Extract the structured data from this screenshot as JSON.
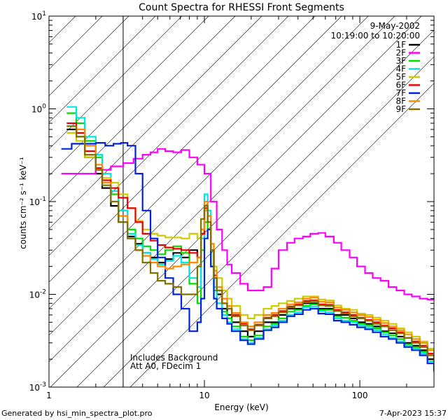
{
  "chart_data": {
    "type": "line",
    "title": "Count Spectra for RHESSI Front Segments",
    "xlabel": "Energy (keV)",
    "ylabel": "counts cm⁻² s⁻¹ keV⁻¹",
    "xscale": "log",
    "yscale": "log",
    "xlim": [
      1,
      300
    ],
    "ylim": [
      0.001,
      10
    ],
    "x_ticks": [
      {
        "value": 1,
        "label": "1"
      },
      {
        "value": 10,
        "label": "10"
      },
      {
        "value": 100,
        "label": "100"
      }
    ],
    "y_ticks": [
      {
        "value": 0.001,
        "base": "10",
        "exp": "-3"
      },
      {
        "value": 0.01,
        "base": "10",
        "exp": "-2"
      },
      {
        "value": 0.1,
        "base": "10",
        "exp": "-1"
      },
      {
        "value": 1,
        "base": "10",
        "exp": "0"
      },
      {
        "value": 10,
        "base": "10",
        "exp": "1"
      }
    ],
    "hatched_region": {
      "x_from": 1,
      "x_to": 3
    },
    "info_top_right": [
      "9-May-2002",
      "10:19:00 to 10:20:00"
    ],
    "annotation_lines": [
      "Includes Background",
      "Att A0, FDecim 1"
    ],
    "footer_left": "Generated by hsi_min_spectra_plot.pro",
    "footer_right": "7-Apr-2023 15:37",
    "series": [
      {
        "name": "1F",
        "color": "#000000",
        "x": [
          1.3,
          1.5,
          1.7,
          2.0,
          2.2,
          2.5,
          2.8,
          3.2,
          3.6,
          4.0,
          4.5,
          5.0,
          5.6,
          6.3,
          7.1,
          8.0,
          9.0,
          9.5,
          10.0,
          10.5,
          11.0,
          11.5,
          12.0,
          13.0,
          14.0,
          15.0,
          17.0,
          19.0,
          21.0,
          24.0,
          27.0,
          30.0,
          34.0,
          38.0,
          43.0,
          48.0,
          54.0,
          60.0,
          68.0,
          76.0,
          86.0,
          96.0,
          108.0,
          121.0,
          136.0,
          153.0,
          172.0,
          193.0,
          216.0,
          243.0,
          272.0,
          300.0
        ],
        "y": [
          0.6,
          0.5,
          0.3,
          0.2,
          0.14,
          0.09,
          0.06,
          0.042,
          0.035,
          0.028,
          0.025,
          0.022,
          0.024,
          0.028,
          0.025,
          0.03,
          0.025,
          0.045,
          0.08,
          0.07,
          0.03,
          0.015,
          0.01,
          0.007,
          0.006,
          0.005,
          0.004,
          0.0035,
          0.004,
          0.005,
          0.005,
          0.006,
          0.007,
          0.007,
          0.008,
          0.008,
          0.007,
          0.007,
          0.006,
          0.006,
          0.0055,
          0.005,
          0.0048,
          0.0045,
          0.004,
          0.0038,
          0.0035,
          0.003,
          0.0028,
          0.0025,
          0.002,
          0.0018
        ]
      },
      {
        "name": "2F",
        "color": "#ff00ff",
        "x": [
          1.2,
          1.5,
          2.0,
          2.5,
          3.0,
          3.5,
          4.0,
          4.5,
          5.0,
          5.6,
          6.3,
          7.1,
          8.0,
          9.0,
          10.0,
          11.0,
          12.0,
          13.0,
          14.0,
          15.0,
          17.0,
          19.0,
          21.0,
          24.0,
          27.0,
          30.0,
          34.0,
          38.0,
          43.0,
          48.0,
          54.0,
          60.0,
          68.0,
          76.0,
          86.0,
          96.0,
          108.0,
          121.0,
          136.0,
          153.0,
          172.0,
          193.0,
          216.0,
          243.0,
          272.0,
          300.0
        ],
        "y": [
          0.2,
          0.2,
          0.22,
          0.24,
          0.26,
          0.29,
          0.32,
          0.34,
          0.37,
          0.35,
          0.34,
          0.36,
          0.3,
          0.25,
          0.2,
          0.1,
          0.05,
          0.03,
          0.021,
          0.017,
          0.013,
          0.011,
          0.011,
          0.012,
          0.019,
          0.03,
          0.036,
          0.04,
          0.042,
          0.045,
          0.046,
          0.042,
          0.036,
          0.03,
          0.025,
          0.02,
          0.017,
          0.015,
          0.014,
          0.012,
          0.011,
          0.01,
          0.0095,
          0.009,
          0.0088,
          0.009
        ]
      },
      {
        "name": "3F",
        "color": "#00dd00",
        "x": [
          1.3,
          1.5,
          1.7,
          2.0,
          2.2,
          2.5,
          2.8,
          3.2,
          3.6,
          4.0,
          4.5,
          5.0,
          5.6,
          6.3,
          7.1,
          8.0,
          9.0,
          9.5,
          10.0,
          10.5,
          11.0,
          11.5,
          12.0,
          13.0,
          14.0,
          15.0,
          17.0,
          19.0,
          21.0,
          24.0,
          27.0,
          30.0,
          34.0,
          38.0,
          43.0,
          48.0,
          54.0,
          60.0,
          68.0,
          76.0,
          86.0,
          96.0,
          108.0,
          121.0,
          136.0,
          153.0,
          172.0,
          193.0,
          216.0,
          243.0,
          272.0,
          300.0
        ],
        "y": [
          0.9,
          0.7,
          0.45,
          0.3,
          0.2,
          0.12,
          0.08,
          0.05,
          0.04,
          0.033,
          0.03,
          0.027,
          0.03,
          0.033,
          0.028,
          0.013,
          0.008,
          0.03,
          0.06,
          0.05,
          0.02,
          0.011,
          0.008,
          0.0065,
          0.0055,
          0.0045,
          0.0035,
          0.0032,
          0.0036,
          0.0045,
          0.0048,
          0.0055,
          0.0065,
          0.0068,
          0.0075,
          0.0078,
          0.0068,
          0.0068,
          0.0058,
          0.0056,
          0.0052,
          0.0048,
          0.0046,
          0.0043,
          0.0039,
          0.0036,
          0.0033,
          0.0029,
          0.0027,
          0.0024,
          0.0019,
          0.0017
        ]
      },
      {
        "name": "4F",
        "color": "#00e5e5",
        "x": [
          1.3,
          1.5,
          1.7,
          2.0,
          2.2,
          2.5,
          2.8,
          3.2,
          3.6,
          4.0,
          4.5,
          5.0,
          5.6,
          6.3,
          7.1,
          8.0,
          9.0,
          9.5,
          10.0,
          10.5,
          11.0,
          11.5,
          12.0,
          13.0,
          14.0,
          15.0,
          17.0,
          19.0,
          21.0,
          24.0,
          27.0,
          30.0,
          34.0,
          38.0,
          43.0,
          48.0,
          54.0,
          60.0,
          68.0,
          76.0,
          86.0,
          96.0,
          108.0,
          121.0,
          136.0,
          153.0,
          172.0,
          193.0,
          216.0,
          243.0,
          272.0,
          300.0
        ],
        "y": [
          1.05,
          0.8,
          0.5,
          0.32,
          0.2,
          0.13,
          0.08,
          0.045,
          0.034,
          0.028,
          0.024,
          0.021,
          0.023,
          0.026,
          0.022,
          0.015,
          0.012,
          0.04,
          0.12,
          0.08,
          0.03,
          0.012,
          0.008,
          0.006,
          0.005,
          0.0042,
          0.0033,
          0.003,
          0.0034,
          0.0042,
          0.0046,
          0.0052,
          0.006,
          0.0064,
          0.0072,
          0.0074,
          0.0066,
          0.0064,
          0.0055,
          0.0052,
          0.005,
          0.0046,
          0.0044,
          0.0041,
          0.0037,
          0.0034,
          0.0031,
          0.0028,
          0.0026,
          0.0023,
          0.0019,
          0.0016
        ]
      },
      {
        "name": "5F",
        "color": "#cccc00",
        "x": [
          1.3,
          1.5,
          1.7,
          2.0,
          2.2,
          2.5,
          2.8,
          3.2,
          3.6,
          4.0,
          4.5,
          5.0,
          5.6,
          6.3,
          7.1,
          8.0,
          9.0,
          9.5,
          10.0,
          10.5,
          11.0,
          11.5,
          12.0,
          13.0,
          14.0,
          15.0,
          17.0,
          19.0,
          21.0,
          24.0,
          27.0,
          30.0,
          34.0,
          38.0,
          43.0,
          48.0,
          54.0,
          60.0,
          68.0,
          76.0,
          86.0,
          96.0,
          108.0,
          121.0,
          136.0,
          153.0,
          172.0,
          193.0,
          216.0,
          243.0,
          272.0,
          300.0
        ],
        "y": [
          0.55,
          0.45,
          0.3,
          0.22,
          0.18,
          0.16,
          0.12,
          0.085,
          0.062,
          0.05,
          0.045,
          0.043,
          0.041,
          0.041,
          0.04,
          0.045,
          0.04,
          0.05,
          0.08,
          0.06,
          0.035,
          0.02,
          0.015,
          0.011,
          0.009,
          0.0075,
          0.006,
          0.0055,
          0.006,
          0.007,
          0.0075,
          0.008,
          0.0085,
          0.009,
          0.0095,
          0.0095,
          0.0088,
          0.0086,
          0.0076,
          0.007,
          0.0068,
          0.0062,
          0.006,
          0.0056,
          0.0052,
          0.0048,
          0.0043,
          0.0039,
          0.0035,
          0.0031,
          0.0026,
          0.0022
        ]
      },
      {
        "name": "6F",
        "color": "#ee0000",
        "x": [
          1.3,
          1.5,
          1.7,
          2.0,
          2.2,
          2.5,
          2.8,
          3.2,
          3.6,
          4.0,
          4.5,
          5.0,
          5.6,
          6.3,
          7.1,
          8.0,
          9.0,
          9.5,
          10.0,
          10.5,
          11.0,
          11.5,
          12.0,
          13.0,
          14.0,
          15.0,
          17.0,
          19.0,
          21.0,
          24.0,
          27.0,
          30.0,
          34.0,
          38.0,
          43.0,
          48.0,
          54.0,
          60.0,
          68.0,
          76.0,
          86.0,
          96.0,
          108.0,
          121.0,
          136.0,
          153.0,
          172.0,
          193.0,
          216.0,
          243.0,
          272.0,
          300.0
        ],
        "y": [
          0.7,
          0.55,
          0.35,
          0.23,
          0.17,
          0.14,
          0.11,
          0.085,
          0.06,
          0.045,
          0.038,
          0.034,
          0.032,
          0.031,
          0.03,
          0.028,
          0.025,
          0.045,
          0.085,
          0.06,
          0.03,
          0.016,
          0.011,
          0.008,
          0.007,
          0.006,
          0.0048,
          0.0042,
          0.0047,
          0.0056,
          0.006,
          0.0066,
          0.0074,
          0.0078,
          0.0085,
          0.0086,
          0.0078,
          0.0077,
          0.0068,
          0.0064,
          0.006,
          0.0056,
          0.0053,
          0.005,
          0.0046,
          0.0043,
          0.0039,
          0.0034,
          0.0031,
          0.0028,
          0.0023,
          0.0019
        ]
      },
      {
        "name": "7F",
        "color": "#0022dd",
        "x": [
          1.2,
          1.4,
          1.7,
          2.0,
          2.3,
          2.6,
          2.9,
          3.2,
          3.6,
          4.0,
          4.5,
          5.0,
          5.6,
          6.3,
          7.1,
          8.0,
          9.0,
          9.5,
          10.0,
          10.5,
          11.0,
          11.5,
          12.0,
          13.0,
          14.0,
          15.0,
          17.0,
          19.0,
          21.0,
          24.0,
          27.0,
          30.0,
          34.0,
          38.0,
          43.0,
          48.0,
          54.0,
          60.0,
          68.0,
          76.0,
          86.0,
          96.0,
          108.0,
          121.0,
          136.0,
          153.0,
          172.0,
          193.0,
          216.0,
          243.0,
          272.0,
          300.0
        ],
        "y": [
          0.37,
          0.42,
          0.42,
          0.43,
          0.4,
          0.42,
          0.43,
          0.4,
          0.2,
          0.08,
          0.04,
          0.025,
          0.015,
          0.01,
          0.007,
          0.004,
          0.005,
          0.009,
          0.04,
          0.05,
          0.02,
          0.009,
          0.007,
          0.0055,
          0.0048,
          0.004,
          0.0032,
          0.0029,
          0.0033,
          0.0041,
          0.0044,
          0.005,
          0.0058,
          0.0061,
          0.0068,
          0.007,
          0.0062,
          0.0061,
          0.0052,
          0.005,
          0.0047,
          0.0044,
          0.0042,
          0.0039,
          0.0035,
          0.0033,
          0.003,
          0.0027,
          0.0025,
          0.0022,
          0.0018,
          0.0015
        ]
      },
      {
        "name": "8F",
        "color": "#ff8800",
        "x": [
          1.3,
          1.5,
          1.7,
          2.0,
          2.2,
          2.5,
          2.8,
          3.2,
          3.6,
          4.0,
          4.5,
          5.0,
          5.6,
          6.3,
          7.1,
          8.0,
          9.0,
          9.5,
          10.0,
          10.5,
          11.0,
          11.5,
          12.0,
          13.0,
          14.0,
          15.0,
          17.0,
          19.0,
          21.0,
          24.0,
          27.0,
          30.0,
          34.0,
          38.0,
          43.0,
          48.0,
          54.0,
          60.0,
          68.0,
          76.0,
          86.0,
          96.0,
          108.0,
          121.0,
          136.0,
          153.0,
          172.0,
          193.0,
          216.0,
          243.0,
          272.0,
          300.0
        ],
        "y": [
          0.65,
          0.6,
          0.4,
          0.25,
          0.16,
          0.1,
          0.07,
          0.04,
          0.03,
          0.026,
          0.022,
          0.02,
          0.019,
          0.02,
          0.021,
          0.022,
          0.025,
          0.05,
          0.1,
          0.07,
          0.035,
          0.018,
          0.012,
          0.009,
          0.0075,
          0.0063,
          0.005,
          0.0045,
          0.005,
          0.006,
          0.0063,
          0.007,
          0.0078,
          0.0082,
          0.009,
          0.0092,
          0.0083,
          0.0082,
          0.0072,
          0.0068,
          0.0064,
          0.006,
          0.0057,
          0.0053,
          0.0049,
          0.0045,
          0.0041,
          0.0037,
          0.0033,
          0.003,
          0.0025,
          0.0021
        ]
      },
      {
        "name": "9F",
        "color": "#807000",
        "x": [
          1.3,
          1.5,
          1.7,
          2.0,
          2.2,
          2.5,
          2.8,
          3.2,
          3.6,
          4.0,
          4.5,
          5.0,
          5.6,
          6.3,
          7.1,
          8.0,
          9.0,
          9.5,
          10.0,
          10.5,
          11.0,
          11.5,
          12.0,
          13.0,
          14.0,
          15.0,
          17.0,
          19.0,
          21.0,
          24.0,
          27.0,
          30.0,
          34.0,
          38.0,
          43.0,
          48.0,
          54.0,
          60.0,
          68.0,
          76.0,
          86.0,
          96.0,
          108.0,
          121.0,
          136.0,
          153.0,
          172.0,
          193.0,
          216.0,
          243.0,
          272.0,
          300.0
        ],
        "y": [
          0.65,
          0.5,
          0.32,
          0.22,
          0.15,
          0.1,
          0.06,
          0.04,
          0.03,
          0.022,
          0.017,
          0.014,
          0.013,
          0.012,
          0.01,
          0.01,
          0.02,
          0.065,
          0.09,
          0.06,
          0.03,
          0.015,
          0.011,
          0.008,
          0.007,
          0.0058,
          0.0046,
          0.0041,
          0.0046,
          0.0055,
          0.0058,
          0.0064,
          0.0072,
          0.0076,
          0.0082,
          0.0084,
          0.0076,
          0.0075,
          0.0066,
          0.0062,
          0.0058,
          0.0055,
          0.0052,
          0.0048,
          0.0045,
          0.0041,
          0.0038,
          0.0034,
          0.003,
          0.0027,
          0.0022,
          0.0019
        ]
      }
    ]
  }
}
